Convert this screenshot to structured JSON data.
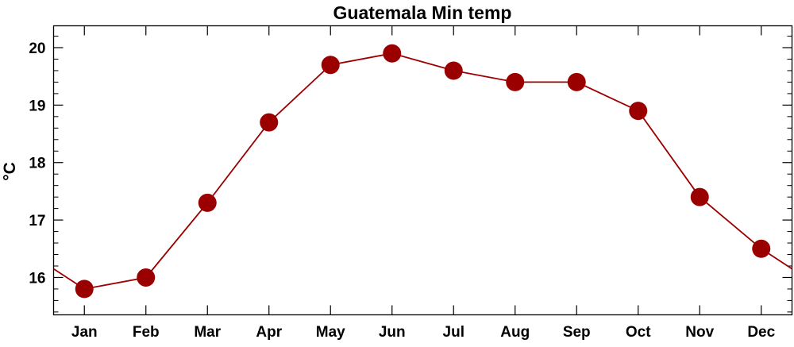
{
  "chart_data": {
    "type": "line",
    "title": "Guatemala Min temp",
    "xlabel": "",
    "ylabel": "°C",
    "categories": [
      "Jan",
      "Feb",
      "Mar",
      "Apr",
      "May",
      "Jun",
      "Jul",
      "Aug",
      "Sep",
      "Oct",
      "Nov",
      "Dec"
    ],
    "series": [
      {
        "values": [
          15.8,
          16.0,
          17.3,
          18.7,
          19.7,
          19.9,
          19.6,
          19.4,
          19.4,
          18.9,
          17.4,
          16.5
        ]
      }
    ],
    "ylim": [
      15.35,
      20.38
    ],
    "yticks": [
      16,
      17,
      18,
      19,
      20
    ],
    "ytick_labels": [
      "16",
      "17",
      "18",
      "19",
      "20"
    ],
    "grid": false,
    "line_wraps_cyclically": true,
    "colors": {
      "series": "#9b0000",
      "axes": "#000000"
    }
  }
}
